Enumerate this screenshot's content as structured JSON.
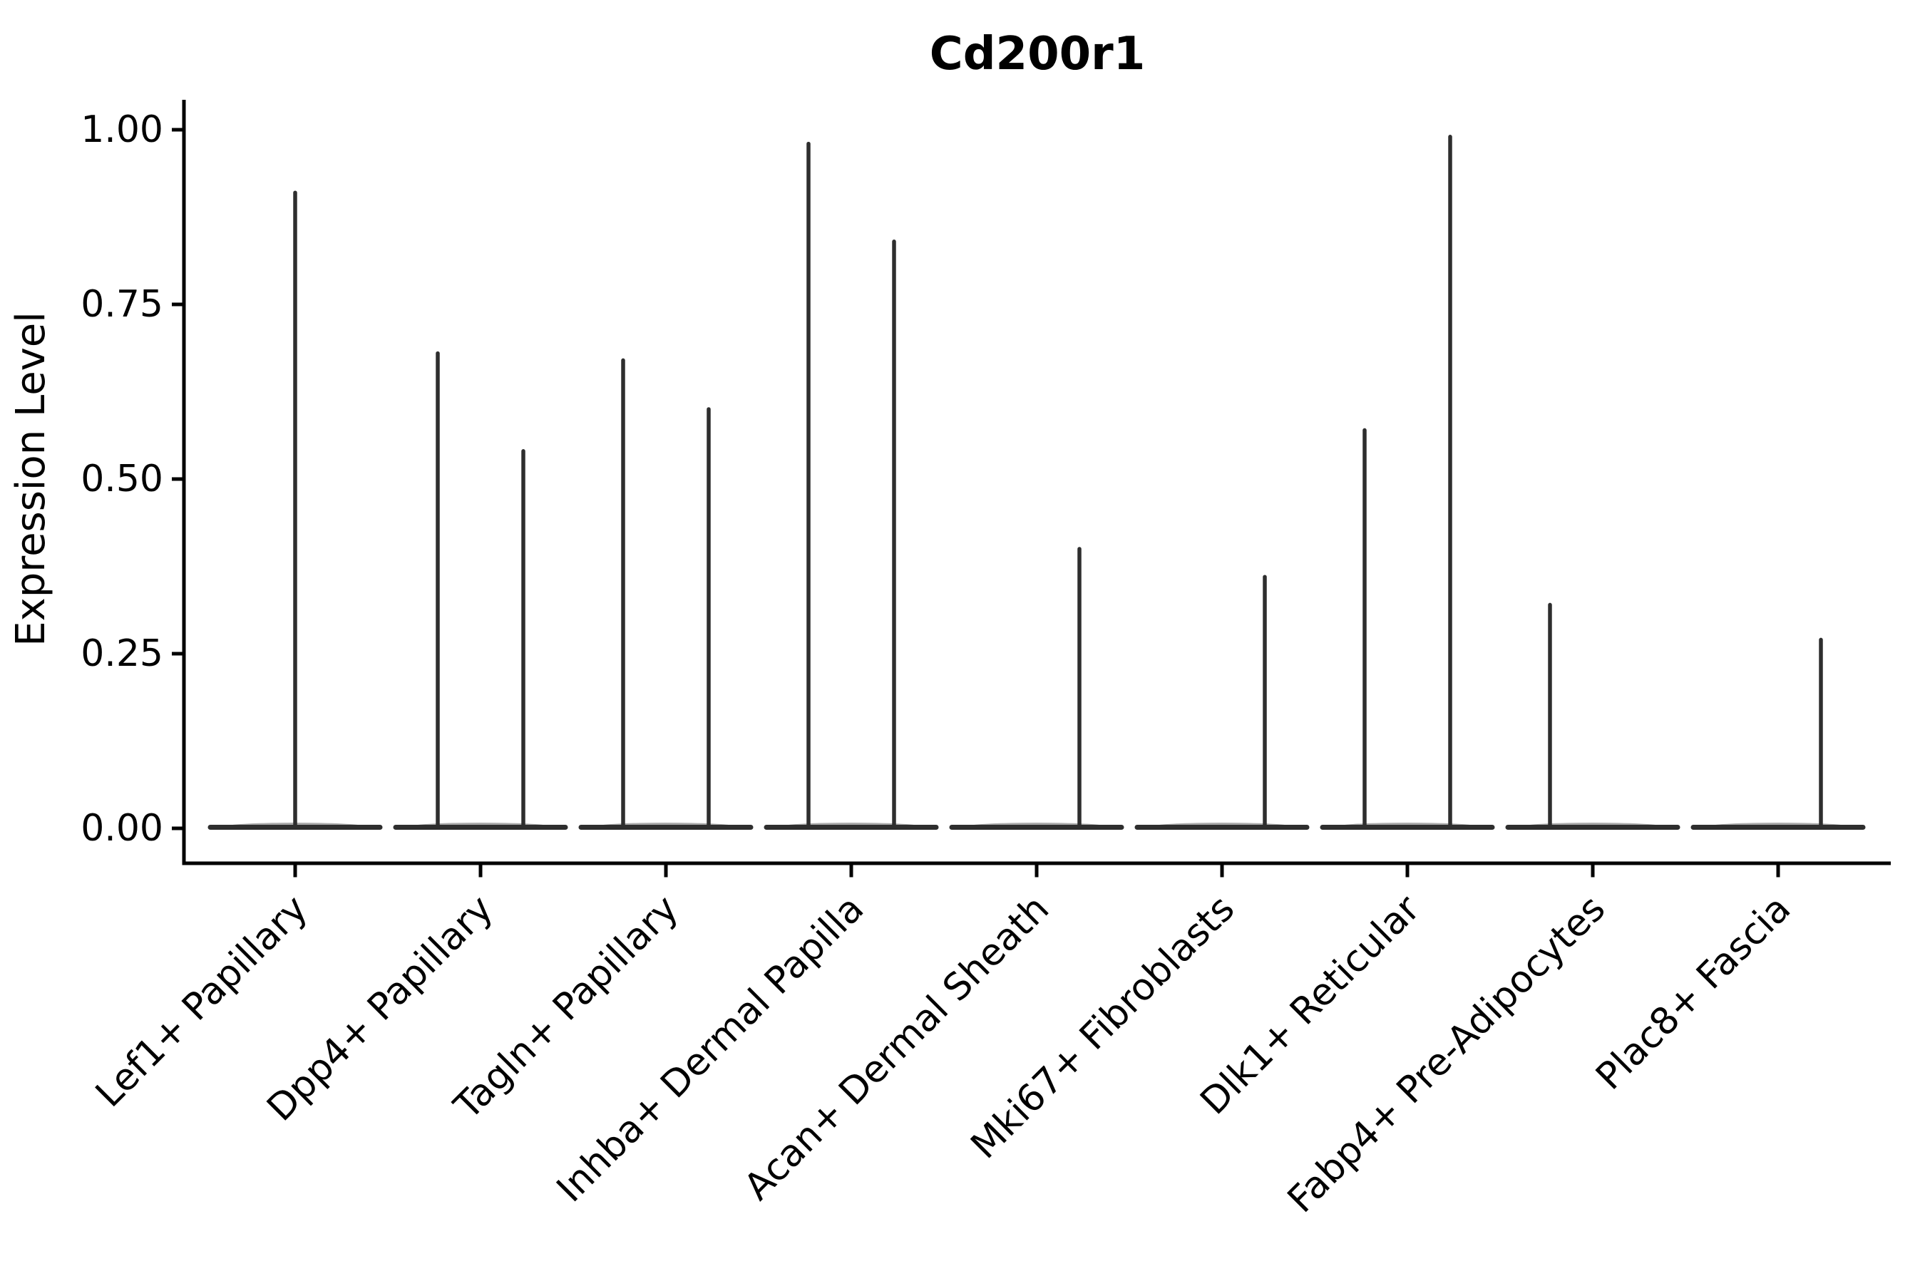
{
  "figure": {
    "background": "#ffffff"
  },
  "chart_data": {
    "type": "violin",
    "title": "Cd200r1",
    "xlabel": "",
    "ylabel": "Expression Level",
    "ylim": [
      -0.05,
      1.05
    ],
    "grid": false,
    "legend": "none",
    "violin_line_color": "#2e2e2e",
    "axis_color": "#000000",
    "yticks": [
      {
        "value": 0.0,
        "label": "0.00"
      },
      {
        "value": 0.25,
        "label": "0.25"
      },
      {
        "value": 0.5,
        "label": "0.50"
      },
      {
        "value": 0.75,
        "label": "0.75"
      },
      {
        "value": 1.0,
        "label": "1.00"
      }
    ],
    "categories": [
      "Lef1+ Papillary",
      "Dpp4+ Papillary",
      "Tagln+ Papillary",
      "Inhba+ Dermal Papilla",
      "Acan+ Dermal Sheath",
      "Mki67+ Fibroblasts",
      "Dlk1+ Reticular",
      "Fabp4+ Pre-Adipocytes",
      "Plac8+ Fascia"
    ],
    "description": "Expression of Cd200r1 per fibroblast cluster; nearly all density is at 0 (flat baseline across each category) with thin spikes reaching the maximum expressed value",
    "violins": [
      {
        "category": "Lef1+ Papillary",
        "baseline": 0,
        "spikes": [
          {
            "offset": "center",
            "peak": 0.91
          }
        ]
      },
      {
        "category": "Dpp4+ Papillary",
        "baseline": 0,
        "spikes": [
          {
            "offset": "left",
            "peak": 0.68
          },
          {
            "offset": "right",
            "peak": 0.54
          }
        ]
      },
      {
        "category": "Tagln+ Papillary",
        "baseline": 0,
        "spikes": [
          {
            "offset": "left",
            "peak": 0.67
          },
          {
            "offset": "right",
            "peak": 0.6
          }
        ]
      },
      {
        "category": "Inhba+ Dermal Papilla",
        "baseline": 0,
        "spikes": [
          {
            "offset": "left",
            "peak": 0.98
          },
          {
            "offset": "right",
            "peak": 0.84
          }
        ]
      },
      {
        "category": "Acan+ Dermal Sheath",
        "baseline": 0,
        "spikes": [
          {
            "offset": "right",
            "peak": 0.4
          }
        ]
      },
      {
        "category": "Mki67+ Fibroblasts",
        "baseline": 0,
        "spikes": [
          {
            "offset": "right",
            "peak": 0.36
          }
        ]
      },
      {
        "category": "Dlk1+ Reticular",
        "baseline": 0,
        "spikes": [
          {
            "offset": "left",
            "peak": 0.57
          },
          {
            "offset": "right",
            "peak": 0.99
          }
        ]
      },
      {
        "category": "Fabp4+ Pre-Adipocytes",
        "baseline": 0,
        "spikes": [
          {
            "offset": "left",
            "peak": 0.32
          }
        ]
      },
      {
        "category": "Plac8+ Fascia",
        "baseline": 0,
        "spikes": [
          {
            "offset": "right",
            "peak": 0.27
          }
        ]
      }
    ]
  }
}
